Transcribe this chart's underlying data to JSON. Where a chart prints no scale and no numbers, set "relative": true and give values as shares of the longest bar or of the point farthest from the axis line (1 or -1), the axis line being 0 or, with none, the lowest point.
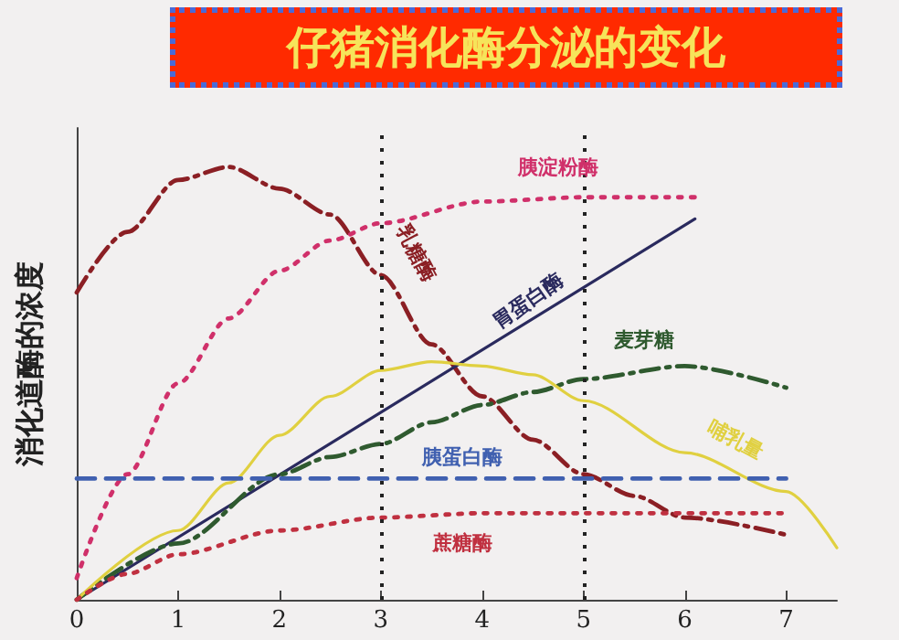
{
  "chart_data": {
    "type": "line",
    "title": "仔猪消化酶分泌的变化",
    "ylabel": "消化道酶的浓度",
    "relative": true,
    "xlim": [
      0,
      7.5
    ],
    "xticks": [
      0,
      1,
      2,
      3,
      4,
      5,
      6,
      7
    ],
    "grid": false,
    "legend": false,
    "marker": "none",
    "series": [
      {
        "name": "乳糖酶",
        "color": "#8b1f24",
        "line_style": "dashdot",
        "x": [
          0,
          0.5,
          1,
          1.5,
          2,
          2.5,
          3,
          3.5,
          4,
          4.5,
          5,
          5.5,
          6,
          7
        ],
        "values": [
          0.71,
          0.85,
          0.97,
          1.0,
          0.95,
          0.89,
          0.75,
          0.59,
          0.47,
          0.37,
          0.29,
          0.24,
          0.19,
          0.15
        ]
      },
      {
        "name": "胰淀粉酶",
        "color": "#d0306a",
        "line_style": "dotted",
        "x": [
          0,
          0.5,
          1,
          1.5,
          2,
          2.5,
          3,
          4,
          5,
          6.1
        ],
        "values": [
          0.05,
          0.29,
          0.5,
          0.65,
          0.76,
          0.83,
          0.87,
          0.92,
          0.93,
          0.93
        ]
      },
      {
        "name": "胃蛋白酶",
        "color": "#2a2a5e",
        "line_style": "solid",
        "x": [
          0,
          6.1
        ],
        "values": [
          0,
          0.88
        ]
      },
      {
        "name": "麦芽糖",
        "color": "#2f5a2f",
        "line_style": "dashdot",
        "x": [
          0,
          1,
          2,
          2.5,
          3,
          3.5,
          4,
          4.5,
          5,
          6,
          7
        ],
        "values": [
          0,
          0.13,
          0.29,
          0.33,
          0.36,
          0.41,
          0.45,
          0.48,
          0.51,
          0.54,
          0.49
        ]
      },
      {
        "name": "哺乳量",
        "color": "#e0d040",
        "line_style": "solid",
        "x": [
          0,
          1,
          1.5,
          2,
          2.5,
          3,
          3.5,
          4,
          4.5,
          5,
          6,
          7,
          7.5
        ],
        "values": [
          0,
          0.16,
          0.27,
          0.38,
          0.47,
          0.53,
          0.55,
          0.54,
          0.52,
          0.46,
          0.34,
          0.25,
          0.12
        ]
      },
      {
        "name": "胰蛋白酶",
        "color": "#4060b0",
        "line_style": "dashed",
        "x": [
          0,
          7
        ],
        "values": [
          0.28,
          0.28
        ]
      },
      {
        "name": "蔗糖酶",
        "color": "#c03040",
        "line_style": "dotted",
        "x": [
          0,
          0.5,
          1,
          2,
          3,
          4,
          5,
          7
        ],
        "values": [
          0,
          0.06,
          0.105,
          0.16,
          0.19,
          0.2,
          0.2,
          0.2
        ]
      }
    ],
    "ref_lines": [
      {
        "axis": "x",
        "value": 3,
        "line_style": "dotted",
        "color": "#222222"
      },
      {
        "axis": "x",
        "value": 5,
        "line_style": "dotted",
        "color": "#222222"
      }
    ]
  }
}
